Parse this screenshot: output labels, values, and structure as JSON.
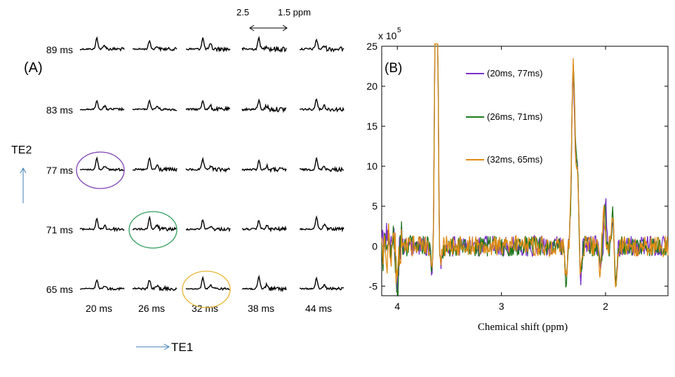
{
  "chart_data": [
    {
      "type": "line",
      "panel_label": "(A)",
      "title": "",
      "te1_values": [
        "20 ms",
        "26 ms",
        "32 ms",
        "38 ms",
        "44 ms"
      ],
      "te2_values": [
        "89 ms",
        "83 ms",
        "77 ms",
        "71 ms",
        "65 ms"
      ],
      "xlabel": "TE1",
      "ylabel": "TE2",
      "ppm_range_annotation": {
        "left": "2.5",
        "right": "1.5 ppm"
      },
      "highlighted_cells": [
        {
          "te1": "20 ms",
          "te2": "77 ms",
          "color": "#7d3fb5"
        },
        {
          "te1": "26 ms",
          "te2": "71 ms",
          "color": "#2e9e5b"
        },
        {
          "te1": "32 ms",
          "te2": "65 ms",
          "color": "#e9b533"
        }
      ]
    },
    {
      "type": "line",
      "panel_label": "(B)",
      "title": "",
      "xlabel": "Chemical shift (ppm)",
      "ylabel": "",
      "y_scale_label": "x 10",
      "y_scale_exponent": "5",
      "xlim": [
        4.15,
        1.4
      ],
      "ylim": [
        -6.2,
        25
      ],
      "xticks": [
        "4",
        "3",
        "2"
      ],
      "yticks": [
        "-5",
        "0",
        "5",
        "10",
        "15",
        "20",
        "25"
      ],
      "series": [
        {
          "name": "(20ms, 77ms)",
          "color": "#7b2fc9"
        },
        {
          "name": "(26ms, 71ms)",
          "color": "#1f7a1f"
        },
        {
          "name": "(32ms, 65ms)",
          "color": "#e08a14"
        }
      ],
      "legend_position": "top-center"
    }
  ]
}
